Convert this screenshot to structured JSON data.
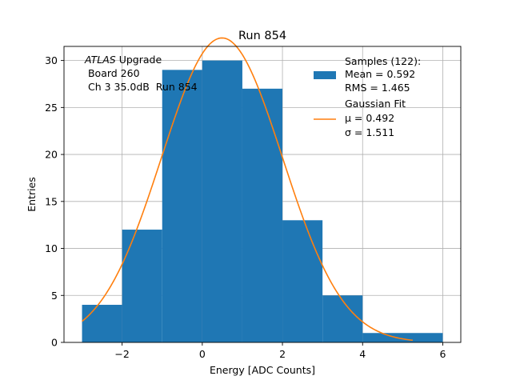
{
  "chart_data": {
    "type": "bar",
    "title": "Run 854",
    "xlabel": "Energy [ADC Counts]",
    "ylabel": "Entries",
    "xlim": [
      -3.45,
      6.45
    ],
    "ylim": [
      0,
      31.5
    ],
    "grid": true,
    "xticks": [
      -2,
      0,
      2,
      4,
      6
    ],
    "xtick_labels": [
      "−2",
      "0",
      "2",
      "4",
      "6"
    ],
    "yticks": [
      0,
      5,
      10,
      15,
      20,
      25,
      30
    ],
    "ytick_labels": [
      "0",
      "5",
      "10",
      "15",
      "20",
      "25",
      "30"
    ],
    "bins": [
      {
        "x0": -3,
        "x1": -2,
        "count": 4
      },
      {
        "x0": -2,
        "x1": -1,
        "count": 12
      },
      {
        "x0": -1,
        "x1": 0,
        "count": 29
      },
      {
        "x0": 0,
        "x1": 1,
        "count": 30
      },
      {
        "x0": 1,
        "x1": 2,
        "count": 27
      },
      {
        "x0": 2,
        "x1": 3,
        "count": 13
      },
      {
        "x0": 3,
        "x1": 4,
        "count": 5
      },
      {
        "x0": 4,
        "x1": 6,
        "count": 1
      }
    ],
    "fit": {
      "name": "Gaussian Fit",
      "mu": 0.492,
      "sigma": 1.511,
      "amplitude": 32.4,
      "x_range": [
        -3.0,
        5.25
      ],
      "color": "#ff7f0e"
    },
    "hist_color": "#1f77b4",
    "annotation": {
      "line1_italic": "ATLAS",
      "line1_rest": " Upgrade",
      "line2": " Board 260",
      "line3": " Ch 3 35.0dB  Run 854"
    },
    "legend": {
      "position": "top-right",
      "samples_title": "Samples (122):",
      "samples_mean": "Mean = 0.592",
      "samples_rms": "RMS = 1.465",
      "fit_title": "Gaussian Fit",
      "fit_mu": "μ = 0.492",
      "fit_sigma": "σ = 1.511"
    }
  }
}
